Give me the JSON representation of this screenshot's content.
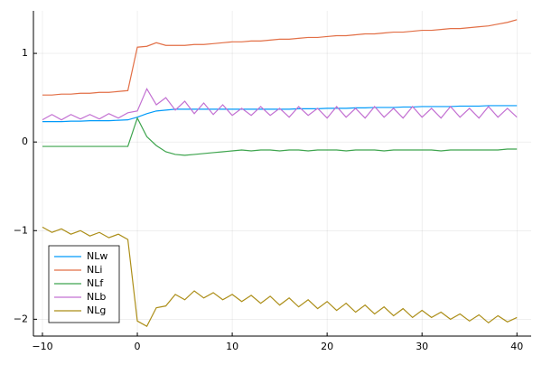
{
  "chart_data": {
    "type": "line",
    "x": [
      -10,
      -9,
      -8,
      -7,
      -6,
      -5,
      -4,
      -3,
      -2,
      -1,
      0,
      1,
      2,
      3,
      4,
      5,
      6,
      7,
      8,
      9,
      10,
      11,
      12,
      13,
      14,
      15,
      16,
      17,
      18,
      19,
      20,
      21,
      22,
      23,
      24,
      25,
      26,
      27,
      28,
      29,
      30,
      31,
      32,
      33,
      34,
      35,
      36,
      37,
      38,
      39,
      40
    ],
    "series": [
      {
        "name": "NLw",
        "color": "#009af9",
        "values": [
          0.23,
          0.23,
          0.23,
          0.235,
          0.235,
          0.24,
          0.24,
          0.24,
          0.245,
          0.25,
          0.28,
          0.32,
          0.35,
          0.36,
          0.37,
          0.37,
          0.37,
          0.37,
          0.37,
          0.37,
          0.37,
          0.37,
          0.37,
          0.37,
          0.37,
          0.37,
          0.37,
          0.375,
          0.375,
          0.375,
          0.38,
          0.38,
          0.38,
          0.385,
          0.385,
          0.39,
          0.39,
          0.39,
          0.395,
          0.395,
          0.4,
          0.4,
          0.4,
          0.4,
          0.405,
          0.405,
          0.405,
          0.41,
          0.41,
          0.41,
          0.41
        ]
      },
      {
        "name": "NLi",
        "color": "#e26f46",
        "values": [
          0.53,
          0.53,
          0.54,
          0.54,
          0.55,
          0.55,
          0.56,
          0.56,
          0.57,
          0.58,
          1.07,
          1.08,
          1.12,
          1.09,
          1.09,
          1.09,
          1.1,
          1.1,
          1.11,
          1.12,
          1.13,
          1.13,
          1.14,
          1.14,
          1.15,
          1.16,
          1.16,
          1.17,
          1.18,
          1.18,
          1.19,
          1.2,
          1.2,
          1.21,
          1.22,
          1.22,
          1.23,
          1.24,
          1.24,
          1.25,
          1.26,
          1.26,
          1.27,
          1.28,
          1.28,
          1.29,
          1.3,
          1.31,
          1.33,
          1.35,
          1.38
        ]
      },
      {
        "name": "NLf",
        "color": "#3da44d",
        "values": [
          -0.05,
          -0.05,
          -0.05,
          -0.05,
          -0.05,
          -0.05,
          -0.05,
          -0.05,
          -0.05,
          -0.05,
          0.27,
          0.06,
          -0.04,
          -0.11,
          -0.14,
          -0.15,
          -0.14,
          -0.13,
          -0.12,
          -0.11,
          -0.1,
          -0.09,
          -0.1,
          -0.09,
          -0.09,
          -0.1,
          -0.09,
          -0.09,
          -0.1,
          -0.09,
          -0.09,
          -0.09,
          -0.1,
          -0.09,
          -0.09,
          -0.09,
          -0.1,
          -0.09,
          -0.09,
          -0.09,
          -0.09,
          -0.09,
          -0.1,
          -0.09,
          -0.09,
          -0.09,
          -0.09,
          -0.09,
          -0.09,
          -0.08,
          -0.08
        ]
      },
      {
        "name": "NLb",
        "color": "#c371d2",
        "values": [
          0.25,
          0.31,
          0.25,
          0.31,
          0.26,
          0.31,
          0.26,
          0.32,
          0.27,
          0.33,
          0.35,
          0.6,
          0.42,
          0.5,
          0.36,
          0.46,
          0.32,
          0.44,
          0.31,
          0.42,
          0.3,
          0.38,
          0.3,
          0.4,
          0.3,
          0.38,
          0.28,
          0.4,
          0.3,
          0.38,
          0.27,
          0.4,
          0.28,
          0.38,
          0.27,
          0.4,
          0.28,
          0.38,
          0.27,
          0.4,
          0.28,
          0.38,
          0.27,
          0.4,
          0.28,
          0.38,
          0.27,
          0.4,
          0.28,
          0.38,
          0.28
        ]
      },
      {
        "name": "NLg",
        "color": "#ac8e18",
        "values": [
          -0.96,
          -1.02,
          -0.98,
          -1.04,
          -1.0,
          -1.06,
          -1.02,
          -1.08,
          -1.04,
          -1.1,
          -2.02,
          -2.08,
          -1.87,
          -1.85,
          -1.72,
          -1.78,
          -1.68,
          -1.76,
          -1.7,
          -1.78,
          -1.72,
          -1.8,
          -1.73,
          -1.82,
          -1.74,
          -1.84,
          -1.76,
          -1.86,
          -1.78,
          -1.88,
          -1.8,
          -1.9,
          -1.82,
          -1.92,
          -1.84,
          -1.94,
          -1.86,
          -1.96,
          -1.88,
          -1.98,
          -1.9,
          -1.98,
          -1.92,
          -2.0,
          -1.94,
          -2.02,
          -1.95,
          -2.04,
          -1.96,
          -2.03,
          -1.98
        ]
      }
    ],
    "xlim": [
      -10.95,
      41.5
    ],
    "xticks": [
      {
        "value": -10,
        "label": "−10"
      },
      0,
      10,
      20,
      30,
      40
    ],
    "ylim": [
      -2.19,
      1.48
    ],
    "yticks": [
      {
        "value": -2,
        "label": "−2"
      },
      {
        "value": -1,
        "label": "−1"
      },
      0,
      1
    ],
    "grid": true,
    "legend": "bottom-left"
  }
}
